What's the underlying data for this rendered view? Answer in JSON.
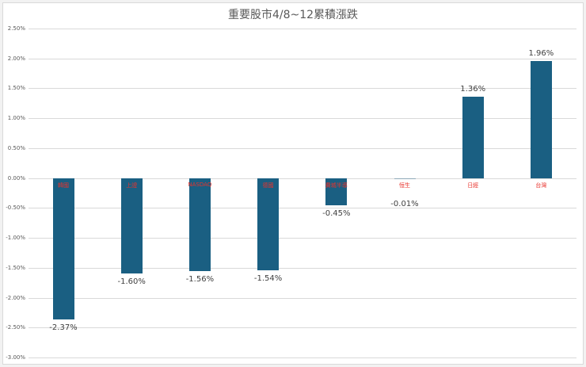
{
  "chart_data": {
    "type": "bar",
    "title": "重要股市4/8~12累積漲跌",
    "xlabel": "",
    "ylabel": "",
    "categories": [
      "韓國",
      "上證",
      "NASDAQ",
      "德國",
      "費城半導",
      "恒生",
      "日經",
      "台灣"
    ],
    "values": [
      -2.37,
      -1.6,
      -1.56,
      -1.54,
      -0.45,
      -0.01,
      1.36,
      1.96
    ],
    "value_labels": [
      "-2.37%",
      "-1.60%",
      "-1.56%",
      "-1.54%",
      "-0.45%",
      "-0.01%",
      "1.36%",
      "1.96%"
    ],
    "ylim": [
      -3.0,
      2.5
    ],
    "yticks": [
      "2.50%",
      "2.00%",
      "1.50%",
      "1.00%",
      "0.50%",
      "0.00%",
      "-0.50%",
      "-1.00%",
      "-1.50%",
      "-2.00%",
      "-2.50%",
      "-3.00%"
    ],
    "grid": true,
    "legend": "none",
    "colors": {
      "bar": "#1a5f82",
      "category_label": "#e8332d",
      "value_label": "#404040",
      "grid": "#d9d9d9"
    }
  }
}
